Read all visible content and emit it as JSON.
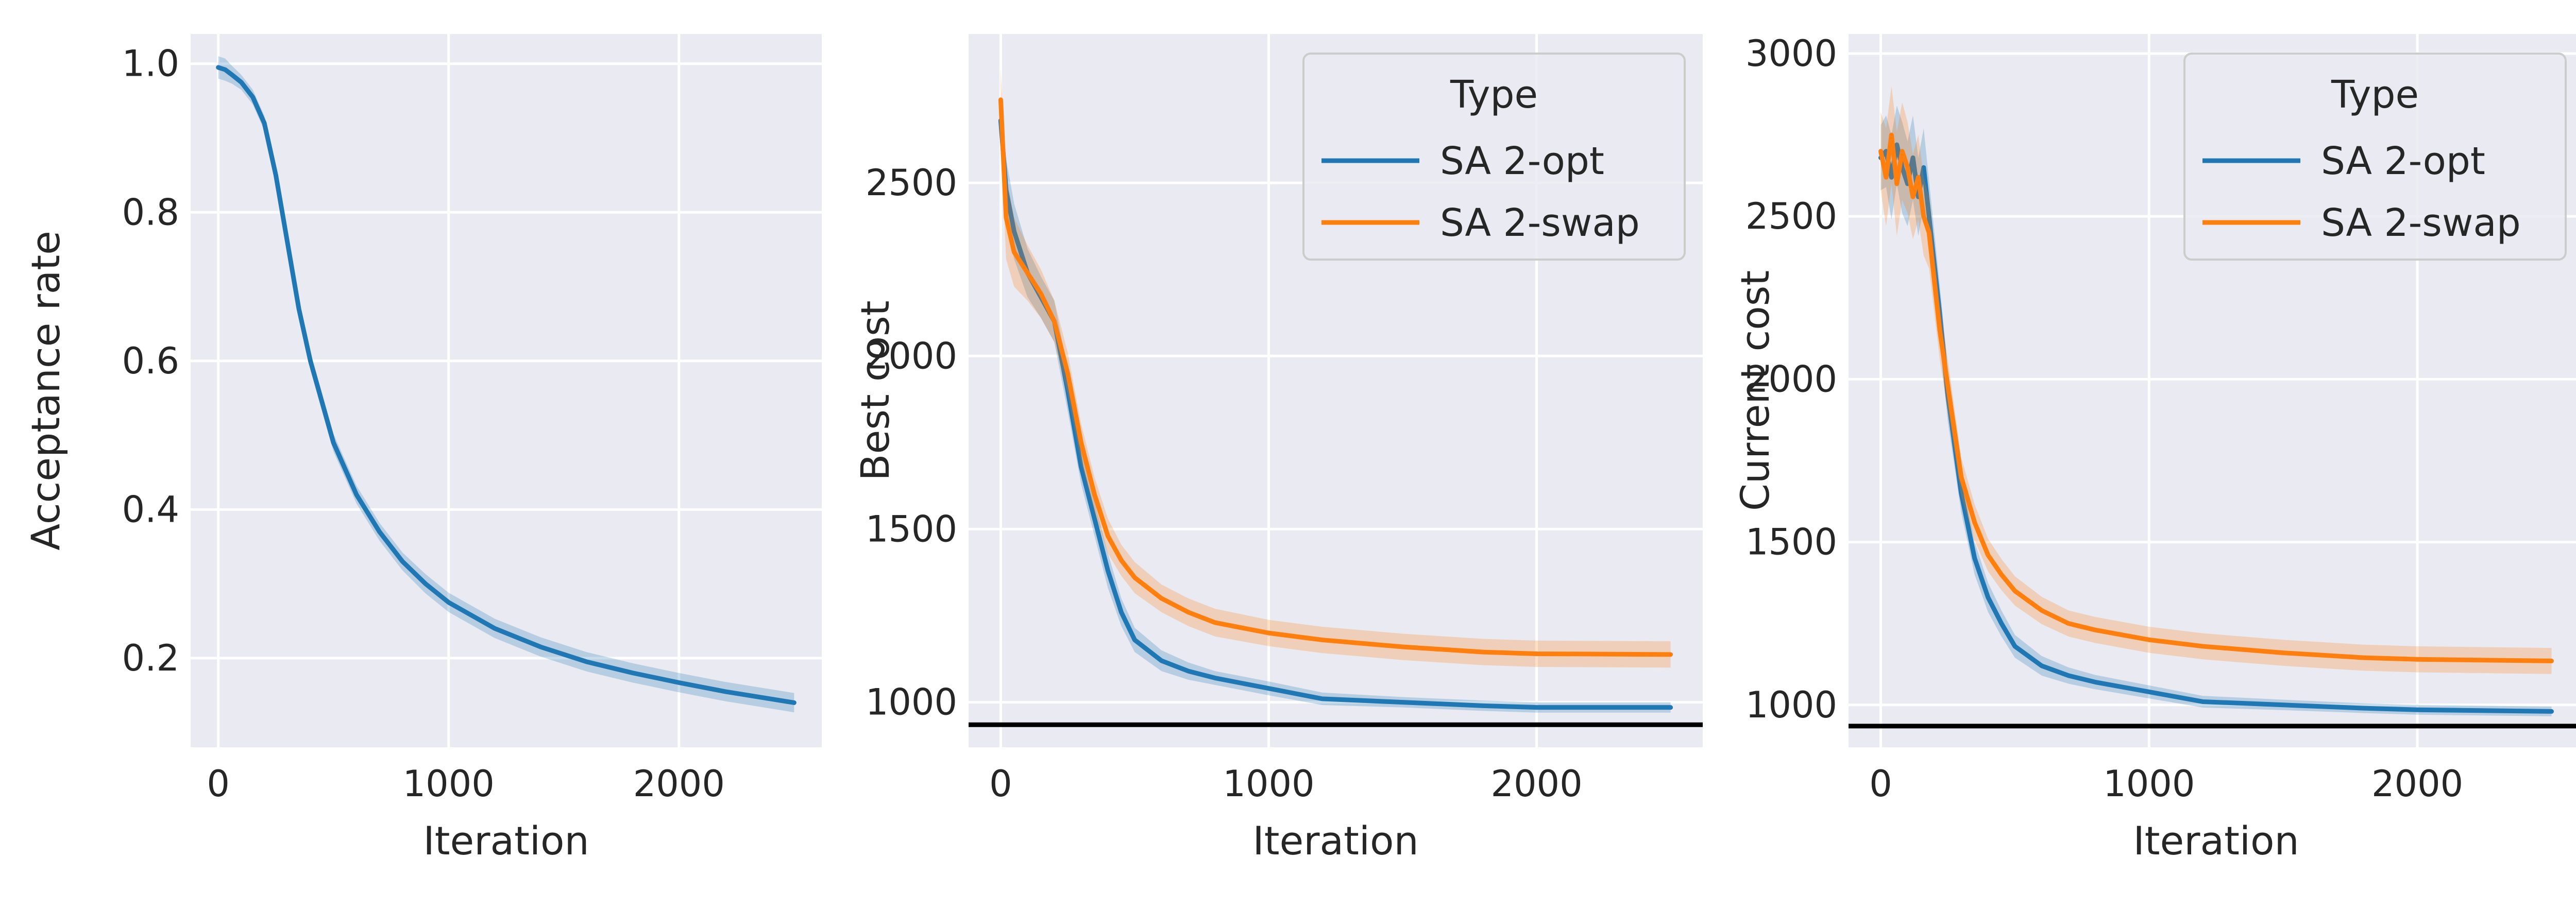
{
  "figure": {
    "background": "#ffffff",
    "panel_background": "#eaeaf2",
    "grid_color": "#ffffff",
    "text_color": "#262626"
  },
  "chart_data": [
    {
      "type": "line",
      "xlabel": "Iteration",
      "ylabel": "Acceptance rate",
      "xlim": [
        -120,
        2620
      ],
      "ylim": [
        0.08,
        1.04
      ],
      "xticks": [
        0,
        1000,
        2000
      ],
      "xtick_labels": [
        "0",
        "1000",
        "2000"
      ],
      "yticks": [
        0.2,
        0.4,
        0.6,
        0.8,
        1.0
      ],
      "ytick_labels": [
        "0.2",
        "0.4",
        "0.6",
        "0.8",
        "1.0"
      ],
      "grid": true,
      "series": [
        {
          "color": "#1f77b4",
          "x": [
            0,
            30,
            60,
            100,
            150,
            200,
            250,
            300,
            350,
            400,
            500,
            600,
            700,
            800,
            900,
            1000,
            1200,
            1400,
            1600,
            1800,
            2000,
            2200,
            2500
          ],
          "y": [
            0.995,
            0.992,
            0.985,
            0.975,
            0.955,
            0.92,
            0.85,
            0.76,
            0.67,
            0.6,
            0.49,
            0.42,
            0.37,
            0.33,
            0.3,
            0.275,
            0.24,
            0.215,
            0.195,
            0.18,
            0.167,
            0.155,
            0.14
          ],
          "band": [
            0.015,
            0.015,
            0.012,
            0.01,
            0.01,
            0.01,
            0.012,
            0.012,
            0.012,
            0.012,
            0.012,
            0.012,
            0.012,
            0.012,
            0.013,
            0.013,
            0.013,
            0.013,
            0.013,
            0.013,
            0.013,
            0.013,
            0.013
          ]
        }
      ]
    },
    {
      "type": "line",
      "xlabel": "Iteration",
      "ylabel": "Best cost",
      "xlim": [
        -120,
        2620
      ],
      "ylim": [
        870,
        2930
      ],
      "xticks": [
        0,
        1000,
        2000
      ],
      "xtick_labels": [
        "0",
        "1000",
        "2000"
      ],
      "yticks": [
        1000,
        1500,
        2000,
        2500
      ],
      "ytick_labels": [
        "1000",
        "1500",
        "2000",
        "2500"
      ],
      "grid": true,
      "reference_line": {
        "y": 935,
        "color": "#000000"
      },
      "legend": {
        "title": "Type",
        "placement": "top-right",
        "entries": [
          "SA 2-opt",
          "SA 2-swap"
        ]
      },
      "series": [
        {
          "name": "SA 2-opt",
          "color": "#1f77b4",
          "x": [
            0,
            20,
            50,
            100,
            150,
            200,
            250,
            300,
            350,
            400,
            450,
            500,
            600,
            700,
            800,
            1000,
            1200,
            1500,
            1800,
            2000,
            2500
          ],
          "y": [
            2680,
            2480,
            2360,
            2240,
            2170,
            2100,
            1900,
            1680,
            1530,
            1380,
            1260,
            1180,
            1120,
            1090,
            1070,
            1040,
            1010,
            1000,
            990,
            985,
            985
          ],
          "band": [
            60,
            90,
            80,
            70,
            60,
            60,
            60,
            50,
            50,
            50,
            40,
            35,
            30,
            25,
            20,
            20,
            18,
            15,
            15,
            15,
            15
          ]
        },
        {
          "name": "SA 2-swap",
          "color": "#ff7f0e",
          "x": [
            0,
            20,
            50,
            100,
            150,
            200,
            250,
            300,
            350,
            400,
            450,
            500,
            600,
            700,
            800,
            1000,
            1200,
            1500,
            1800,
            2000,
            2500
          ],
          "y": [
            2740,
            2400,
            2300,
            2240,
            2180,
            2100,
            1950,
            1750,
            1600,
            1480,
            1410,
            1360,
            1300,
            1260,
            1230,
            1200,
            1180,
            1160,
            1145,
            1140,
            1138
          ],
          "band": [
            90,
            120,
            100,
            80,
            70,
            60,
            60,
            55,
            50,
            50,
            45,
            45,
            40,
            40,
            40,
            38,
            38,
            38,
            38,
            38,
            38
          ]
        }
      ]
    },
    {
      "type": "line",
      "xlabel": "Iteration",
      "ylabel": "Current cost",
      "xlim": [
        -120,
        2620
      ],
      "ylim": [
        870,
        3060
      ],
      "xticks": [
        0,
        1000,
        2000
      ],
      "xtick_labels": [
        "0",
        "1000",
        "2000"
      ],
      "yticks": [
        1000,
        1500,
        2000,
        2500,
        3000
      ],
      "ytick_labels": [
        "1000",
        "1500",
        "2000",
        "2500",
        "3000"
      ],
      "grid": true,
      "reference_line": {
        "y": 935,
        "color": "#000000"
      },
      "legend": {
        "title": "Type",
        "placement": "top-right",
        "entries": [
          "SA 2-opt",
          "SA 2-swap"
        ]
      },
      "series": [
        {
          "name": "SA 2-opt",
          "color": "#1f77b4",
          "x": [
            0,
            20,
            40,
            60,
            80,
            100,
            120,
            140,
            160,
            180,
            200,
            220,
            250,
            300,
            350,
            400,
            450,
            500,
            600,
            700,
            800,
            1000,
            1200,
            1500,
            1800,
            2000,
            2500
          ],
          "y": [
            2680,
            2700,
            2620,
            2720,
            2650,
            2600,
            2680,
            2560,
            2650,
            2500,
            2350,
            2200,
            1950,
            1650,
            1450,
            1330,
            1250,
            1180,
            1120,
            1090,
            1070,
            1040,
            1010,
            1000,
            990,
            985,
            980
          ],
          "band": [
            100,
            110,
            130,
            120,
            140,
            130,
            130,
            120,
            120,
            110,
            100,
            90,
            80,
            60,
            50,
            45,
            40,
            35,
            30,
            25,
            22,
            20,
            18,
            16,
            15,
            15,
            15
          ]
        },
        {
          "name": "SA 2-swap",
          "color": "#ff7f0e",
          "x": [
            0,
            20,
            40,
            60,
            80,
            100,
            120,
            140,
            160,
            180,
            200,
            220,
            250,
            300,
            350,
            400,
            450,
            500,
            600,
            700,
            800,
            1000,
            1200,
            1500,
            1800,
            2000,
            2500
          ],
          "y": [
            2700,
            2620,
            2750,
            2600,
            2700,
            2650,
            2560,
            2620,
            2500,
            2450,
            2300,
            2150,
            1980,
            1700,
            1560,
            1460,
            1400,
            1350,
            1290,
            1250,
            1230,
            1200,
            1180,
            1160,
            1145,
            1140,
            1135
          ],
          "band": [
            120,
            150,
            150,
            160,
            150,
            140,
            130,
            130,
            120,
            110,
            100,
            90,
            80,
            60,
            55,
            50,
            48,
            45,
            42,
            40,
            40,
            40,
            40,
            40,
            40,
            40,
            40
          ]
        }
      ]
    }
  ]
}
